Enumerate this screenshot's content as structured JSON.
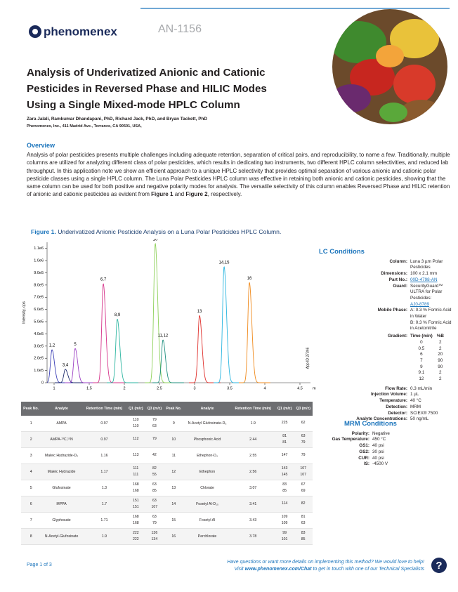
{
  "header": {
    "logo": "phenomenex",
    "doc_id": "AN-1156"
  },
  "title": "Analysis of Underivatized Anionic and Cationic Pesticides in Reversed Phase and HILIC Modes Using a Single Mixed-mode HPLC Column",
  "authors": "Zara Jalali, Ramkumar Dhandapani, PhD, Richard Jack, PhD, and Bryan Tackett, PhD",
  "affiliation": "Phenomenex, Inc., 411 Madrid Ave., Torrance, CA 90501, USA,",
  "overview": {
    "heading": "Overview",
    "text_before": "Analysis of polar pesticides presents multiple challenges including adequate retention, separation of critical pairs, and reproducibility, to name a few. Traditionally, multiple columns are utilized for analyzing different class of polar pesticides, which results in dedicating two instruments, two different HPLC column selectivities, and reduced lab throughput.  In this application note we show an efficient approach to a unique HPLC selectivity that provides optimal separation of various anionic and cationic polar pesticide classes using a single HPLC column.  The Luna Polar Pesticides HPLC column was effective in retaining both anionic and cationic pesticides, showing that the same column can be used for both positive and negative polarity modes for analysis. The versatile selectivity of this column enables Reversed Phase and HILIC retention of anionic and cationic pesticides as evident from ",
    "figure1_ref": "Figure 1",
    "between": " and ",
    "figure2_ref": "Figure 2",
    "text_after": ", respectively."
  },
  "figure": {
    "label": "Figure 1.",
    "caption": " Underivatized Anionic Pesticide Analysis on a Luna Polar Pesticides HPLC Column."
  },
  "chart_data": {
    "type": "chromatogram",
    "y_label": "Intensity, cps",
    "x_unit": "min",
    "annotation": "App ID 27346",
    "xlim": [
      0.9,
      4.65
    ],
    "ylim": [
      0,
      1150000
    ],
    "xticks": [
      1,
      1.5,
      2,
      2.5,
      3,
      3.5,
      4,
      4.5
    ],
    "yticks": [
      0,
      {
        "value": 100000,
        "label": "1.0e5"
      },
      {
        "value": 200000,
        "label": "2.0e5"
      },
      {
        "value": 300000,
        "label": "3.0e5"
      },
      {
        "value": 400000,
        "label": "4.0e5"
      },
      {
        "value": 500000,
        "label": "5.0e5"
      },
      {
        "value": 600000,
        "label": "6.0e5"
      },
      {
        "value": 700000,
        "label": "7.0e5"
      },
      {
        "value": 800000,
        "label": "8.0e5"
      },
      {
        "value": 900000,
        "label": "9.0e5"
      },
      {
        "value": 1000000,
        "label": "1.0e6"
      },
      {
        "value": 1100000,
        "label": "1.1e6"
      }
    ],
    "peaks": [
      {
        "label": "1,2",
        "rt": 0.97,
        "height": 270000,
        "color": "#3b3fb5"
      },
      {
        "label": "3,4",
        "rt": 1.16,
        "height": 110000,
        "color": "#1b2a6b"
      },
      {
        "label": "5",
        "rt": 1.3,
        "height": 280000,
        "color": "#9b3fc4"
      },
      {
        "label": "6,7",
        "rt": 1.7,
        "height": 810000,
        "color": "#d6338a"
      },
      {
        "label": "8,9",
        "rt": 1.9,
        "height": 520000,
        "color": "#2bb5a0"
      },
      {
        "label": "10",
        "rt": 2.44,
        "height": 1140000,
        "color": "#8ed15a"
      },
      {
        "label": "11,12",
        "rt": 2.55,
        "height": 350000,
        "color": "#1f8f7f"
      },
      {
        "label": "13",
        "rt": 3.07,
        "height": 550000,
        "color": "#e0302c"
      },
      {
        "label": "14,15",
        "rt": 3.42,
        "height": 950000,
        "color": "#2ab6e0"
      },
      {
        "label": "16",
        "rt": 3.78,
        "height": 820000,
        "color": "#f08a1c"
      }
    ]
  },
  "table": {
    "columns": [
      "Peak No.",
      "Analyte",
      "Retention Time (min)",
      "Q1 (m/z)",
      "Q3 (m/z)"
    ],
    "left": [
      {
        "no": "1",
        "analyte": "AMPA",
        "rt": "0.97",
        "transitions": [
          [
            "110",
            "79"
          ],
          [
            "110",
            "63"
          ]
        ]
      },
      {
        "no": "2",
        "analyte": "AMPA-¹³C,¹⁵N",
        "rt": "0.97",
        "transitions": [
          [
            "112",
            "79"
          ]
        ]
      },
      {
        "no": "3",
        "analyte": "Maleic Hydrazide-D₂",
        "rt": "1.16",
        "transitions": [
          [
            "113",
            "42"
          ]
        ]
      },
      {
        "no": "4",
        "analyte": "Maleic Hydrazide",
        "rt": "1.17",
        "transitions": [
          [
            "111",
            "82"
          ],
          [
            "111",
            "55"
          ]
        ]
      },
      {
        "no": "5",
        "analyte": "Glufosinate",
        "rt": "1.3",
        "transitions": [
          [
            "168",
            "63"
          ],
          [
            "168",
            "85"
          ]
        ]
      },
      {
        "no": "6",
        "analyte": "MPPA",
        "rt": "1.7",
        "transitions": [
          [
            "151",
            "63"
          ],
          [
            "151",
            "107"
          ]
        ]
      },
      {
        "no": "7",
        "analyte": "Glyphosate",
        "rt": "1.71",
        "transitions": [
          [
            "168",
            "63"
          ],
          [
            "168",
            "79"
          ]
        ]
      },
      {
        "no": "8",
        "analyte": "N-Acetyl-Glufosinate",
        "rt": "1.9",
        "transitions": [
          [
            "222",
            "136"
          ],
          [
            "222",
            "134"
          ]
        ]
      }
    ],
    "right": [
      {
        "no": "9",
        "analyte": "N-Acetyl Glufosinate-D₃",
        "rt": "1.9",
        "transitions": [
          [
            "225",
            "62"
          ]
        ]
      },
      {
        "no": "10",
        "analyte": "Phosphonic Acid",
        "rt": "2.44",
        "transitions": [
          [
            "81",
            "63"
          ],
          [
            "81",
            "79"
          ]
        ]
      },
      {
        "no": "11",
        "analyte": "Ethephon-D₄",
        "rt": "2.55",
        "transitions": [
          [
            "147",
            "79"
          ]
        ]
      },
      {
        "no": "12",
        "analyte": "Ethephon",
        "rt": "2.56",
        "transitions": [
          [
            "143",
            "107"
          ],
          [
            "145",
            "107"
          ]
        ]
      },
      {
        "no": "13",
        "analyte": "Chlorate",
        "rt": "3.07",
        "transitions": [
          [
            "83",
            "67"
          ],
          [
            "85",
            "69"
          ]
        ]
      },
      {
        "no": "14",
        "analyte": "Fosetyl Al-D₁₅",
        "rt": "3.41",
        "transitions": [
          [
            "114",
            "82"
          ]
        ]
      },
      {
        "no": "15",
        "analyte": "Fosetyl Al",
        "rt": "3.43",
        "transitions": [
          [
            "109",
            "81"
          ],
          [
            "109",
            "63"
          ]
        ]
      },
      {
        "no": "16",
        "analyte": "Perchlorate",
        "rt": "3.78",
        "transitions": [
          [
            "99",
            "83"
          ],
          [
            "101",
            "85"
          ]
        ]
      }
    ]
  },
  "lc_conditions": {
    "heading": "LC Conditions",
    "items": [
      {
        "label": "Column:",
        "value": [
          "Luna 3 µm Polar Pesticides"
        ]
      },
      {
        "label": "Dimensions:",
        "value": [
          "100 x 2.1 mm"
        ]
      },
      {
        "label": "Part No.:",
        "link": "00D-4798-AN"
      },
      {
        "label": "Guard:",
        "value": [
          "SecurityGuard™ ULTRA for Polar",
          "Pesticides:"
        ],
        "link": "AJ0-8789"
      },
      {
        "label": "Mobile Phase:",
        "value": [
          "A: 0.3 % Formic Acid in Water",
          "B: 0.3 % Formic Acid in Acetonitrile"
        ]
      }
    ],
    "gradient": {
      "label": "Gradient:",
      "header": [
        "Time (min)",
        "%B"
      ],
      "rows": [
        [
          "0",
          "2"
        ],
        [
          "0.5",
          "2"
        ],
        [
          "6",
          "20"
        ],
        [
          "7",
          "90"
        ],
        [
          "9",
          "90"
        ],
        [
          "9.1",
          "2"
        ],
        [
          "12",
          "2"
        ]
      ]
    },
    "after": [
      {
        "label": "Flow Rate:",
        "value": [
          "0.3 mL/min"
        ]
      },
      {
        "label": "Injection Volume:",
        "value": [
          "1 µL"
        ]
      },
      {
        "label": "Temperature:",
        "value": [
          "40 °C"
        ]
      },
      {
        "label": "Detection:",
        "value": [
          "MRM"
        ]
      },
      {
        "label": "Detector:",
        "value": [
          "SCIEX® 7500"
        ]
      },
      {
        "label": "Analyte Concentrations:",
        "value": [
          "50 ng/mL"
        ]
      }
    ]
  },
  "mrm_conditions": {
    "heading": "MRM Conditions",
    "items": [
      {
        "label": "Polarity:",
        "value": [
          "Negative"
        ]
      },
      {
        "label": "Gas Temperature:",
        "value": [
          "450 °C"
        ]
      },
      {
        "label": "GS1:",
        "value": [
          "40 psi"
        ]
      },
      {
        "label": "GS2:",
        "value": [
          "30 psi"
        ]
      },
      {
        "label": "CUR:",
        "value": [
          "40 psi"
        ]
      },
      {
        "label": "IS:",
        "value": [
          "-4500 V"
        ]
      }
    ]
  },
  "footer": {
    "page": "Page 1 of 3",
    "help": "Have questions or want more details on implementing this method? We would love to help!",
    "visit_before": "Visit ",
    "link": "www.phenomenex.com/Chat",
    "visit_after": " to get in touch with one of our Technical Specialists",
    "icon": "?"
  }
}
